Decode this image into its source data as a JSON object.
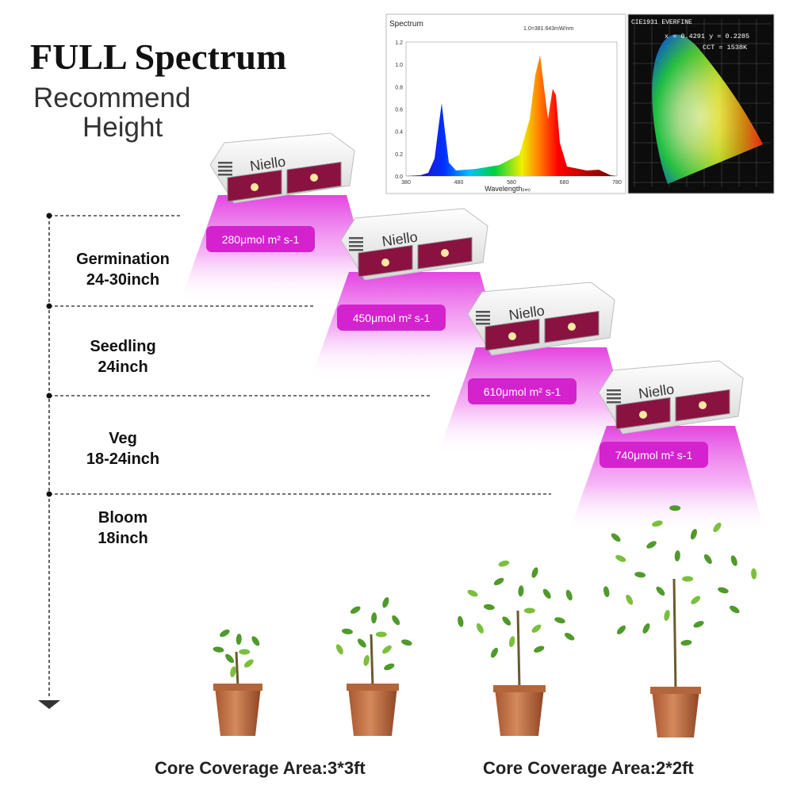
{
  "header": {
    "title": "FULL Spectrum",
    "subtitle_lines": [
      "Recommend",
      "Height"
    ]
  },
  "spectrum": {
    "title": "Spectrum",
    "scale_note": "1.0=381.643mW/nm",
    "yticks": [
      "0.0",
      "0.2",
      "0.4",
      "0.6",
      "0.8",
      "1.0",
      "1.2"
    ],
    "xticks": [
      "380",
      "480",
      "580",
      "680",
      "780"
    ],
    "xlabel": "Wavelength",
    "xunit": "(nm)"
  },
  "cie": {
    "title": "CIE1931 EVERFINE",
    "coords": "x = 0.4291  y = 0.2285",
    "cct": "CCT = 1538K"
  },
  "stages": [
    {
      "name": "Germination",
      "height": "24-30inch"
    },
    {
      "name": "Seedling",
      "height": "24inch"
    },
    {
      "name": "Veg",
      "height": "18-24inch"
    },
    {
      "name": "Bloom",
      "height": "18inch"
    }
  ],
  "lamps": [
    {
      "brand": "Niello",
      "ppfd": "280μmol m² s-1"
    },
    {
      "brand": "Niello",
      "ppfd": "450μmol m² s-1"
    },
    {
      "brand": "Niello",
      "ppfd": "610μmol m² s-1"
    },
    {
      "brand": "Niello",
      "ppfd": "740μmol m² s-1"
    }
  ],
  "coverage": [
    "Core Coverage Area:3*3ft",
    "Core Coverage Area:2*2ft"
  ]
}
